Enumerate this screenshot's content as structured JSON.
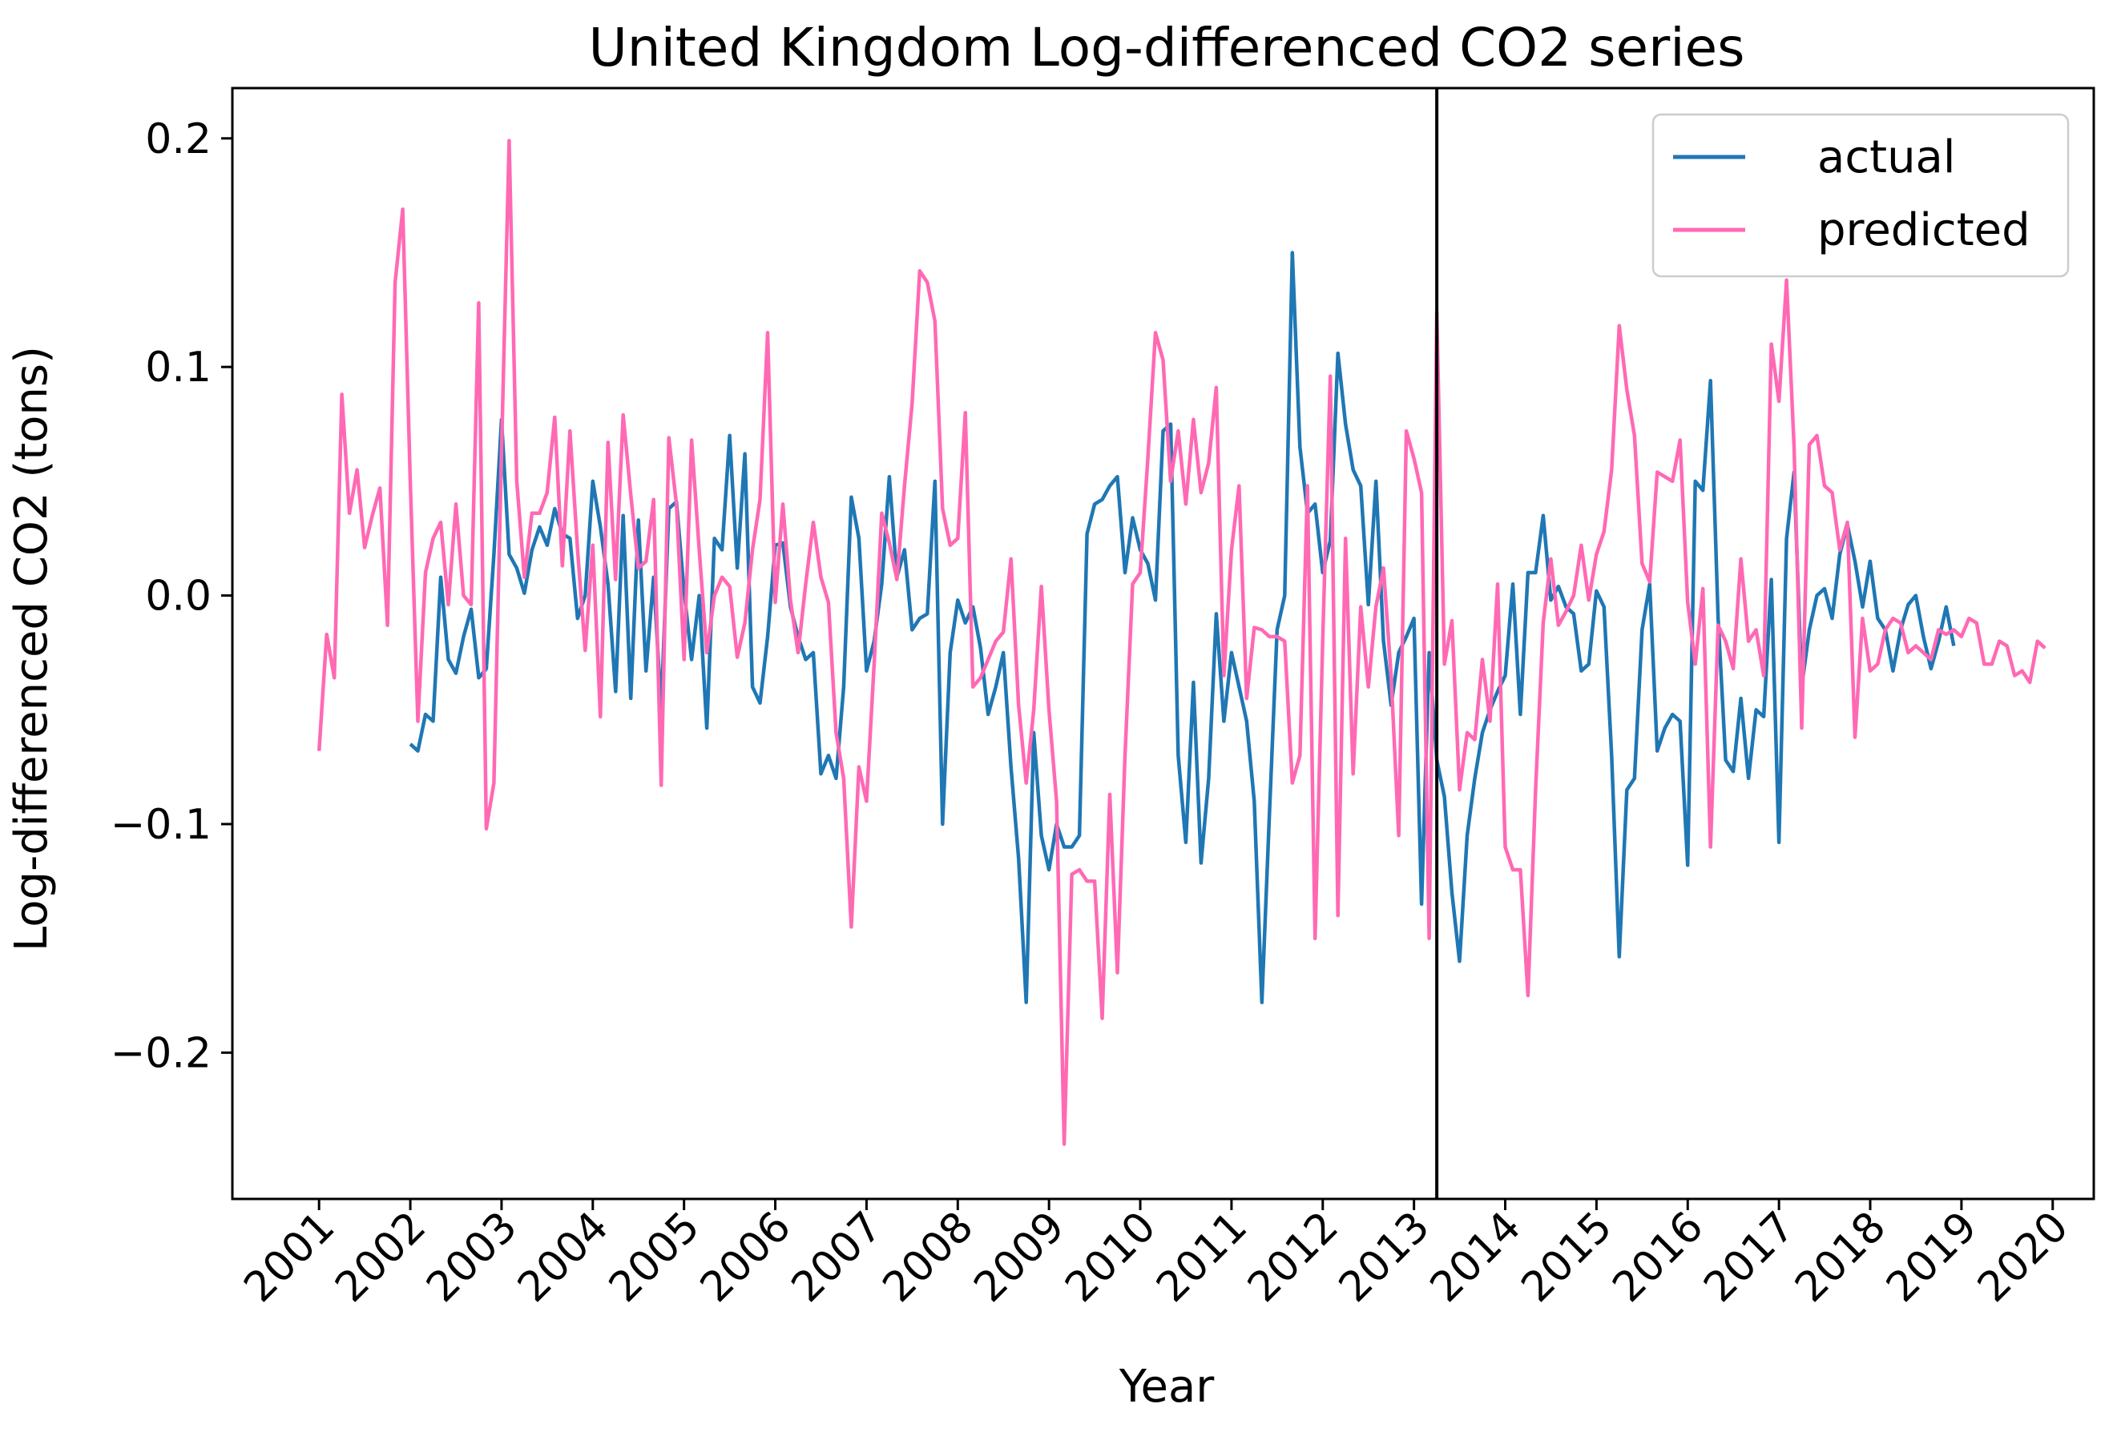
{
  "chart_data": {
    "type": "line",
    "title": "United Kingdom Log-differenced CO2 series",
    "xlabel": "Year",
    "ylabel": "Log-differenced CO2 (tons)",
    "xlim": [
      2000.05,
      2020.45
    ],
    "ylim": [
      -0.264,
      0.222
    ],
    "x_ticks": [
      2001,
      2002,
      2003,
      2004,
      2005,
      2006,
      2007,
      2008,
      2009,
      2010,
      2011,
      2012,
      2013,
      2014,
      2015,
      2016,
      2017,
      2018,
      2019,
      2020
    ],
    "x_tick_labels": [
      "2001",
      "2002",
      "2003",
      "2004",
      "2005",
      "2006",
      "2007",
      "2008",
      "2009",
      "2010",
      "2011",
      "2012",
      "2013",
      "2014",
      "2015",
      "2016",
      "2017",
      "2018",
      "2019",
      "2020"
    ],
    "y_ticks": [
      -0.2,
      -0.1,
      0.0,
      0.1,
      0.2
    ],
    "y_tick_labels": [
      "−0.2",
      "−0.1",
      "0.0",
      "0.1",
      "0.2"
    ],
    "grid": false,
    "legend": {
      "position": "top-right",
      "entries": [
        "actual",
        "predicted"
      ]
    },
    "vertical_line": {
      "x": 2013.25,
      "color": "#000000"
    },
    "series": [
      {
        "name": "actual",
        "color": "#1f77b4",
        "x_start": 2002.0,
        "x_step": 0.08333,
        "values": [
          -0.065,
          -0.068,
          -0.052,
          -0.055,
          0.008,
          -0.028,
          -0.034,
          -0.018,
          -0.006,
          -0.036,
          -0.032,
          0.018,
          0.077,
          0.018,
          0.012,
          0.001,
          0.02,
          0.03,
          0.022,
          0.038,
          0.027,
          0.025,
          -0.01,
          0.0,
          0.05,
          0.03,
          0.005,
          -0.042,
          0.035,
          -0.045,
          0.033,
          -0.033,
          0.008,
          -0.05,
          0.038,
          0.041,
          0.002,
          -0.028,
          0.0,
          -0.058,
          0.025,
          0.02,
          0.07,
          0.012,
          0.062,
          -0.04,
          -0.047,
          -0.018,
          0.022,
          0.023,
          -0.005,
          -0.018,
          -0.028,
          -0.025,
          -0.078,
          -0.07,
          -0.08,
          -0.04,
          0.043,
          0.025,
          -0.033,
          -0.02,
          0.005,
          0.052,
          0.008,
          0.02,
          -0.015,
          -0.01,
          -0.008,
          0.05,
          -0.1,
          -0.025,
          -0.002,
          -0.012,
          -0.005,
          -0.023,
          -0.052,
          -0.04,
          -0.025,
          -0.075,
          -0.115,
          -0.178,
          -0.06,
          -0.105,
          -0.12,
          -0.1,
          -0.11,
          -0.11,
          -0.105,
          0.027,
          0.04,
          0.042,
          0.048,
          0.052,
          0.01,
          0.034,
          0.02,
          0.014,
          -0.002,
          0.072,
          0.075,
          -0.07,
          -0.108,
          -0.038,
          -0.117,
          -0.08,
          -0.008,
          -0.055,
          -0.025,
          -0.04,
          -0.055,
          -0.09,
          -0.178,
          -0.095,
          -0.015,
          0.0,
          0.15,
          0.065,
          0.036,
          0.04,
          0.01,
          0.024,
          0.106,
          0.075,
          0.055,
          0.048,
          -0.004,
          0.05,
          -0.02,
          -0.048,
          -0.025,
          -0.018,
          -0.01,
          -0.135,
          -0.025,
          -0.072,
          -0.088,
          -0.13,
          -0.16,
          -0.105,
          -0.08,
          -0.06,
          -0.05,
          -0.042,
          -0.035,
          0.005,
          -0.052,
          0.01,
          0.01,
          0.035,
          -0.002,
          0.004,
          -0.005,
          -0.008,
          -0.033,
          -0.03,
          0.002,
          -0.005,
          -0.07,
          -0.158,
          -0.085,
          -0.08,
          -0.015,
          0.005,
          -0.068,
          -0.058,
          -0.052,
          -0.055,
          -0.118,
          0.05,
          0.046,
          0.094,
          -0.01,
          -0.072,
          -0.077,
          -0.045,
          -0.08,
          -0.05,
          -0.053,
          0.007,
          -0.108,
          0.025,
          0.054,
          -0.04,
          -0.015,
          0.0,
          0.003,
          -0.01,
          0.018,
          0.031,
          0.015,
          -0.005,
          0.015,
          -0.01,
          -0.015,
          -0.033,
          -0.015,
          -0.004,
          0.0,
          -0.018,
          -0.032,
          -0.02,
          -0.005,
          -0.022
        ]
      },
      {
        "name": "predicted",
        "color": "#ff69b4",
        "x_start": 2001.0,
        "x_step": 0.08333,
        "values": [
          -0.068,
          -0.017,
          -0.036,
          0.088,
          0.036,
          0.055,
          0.021,
          0.035,
          0.047,
          -0.013,
          0.137,
          0.169,
          0.05,
          -0.055,
          0.01,
          0.025,
          0.032,
          -0.004,
          0.04,
          0.0,
          -0.004,
          0.128,
          -0.102,
          -0.082,
          0.063,
          0.199,
          0.05,
          0.008,
          0.036,
          0.036,
          0.045,
          0.078,
          0.013,
          0.072,
          0.02,
          -0.024,
          0.022,
          -0.053,
          0.067,
          0.007,
          0.079,
          0.044,
          0.012,
          0.015,
          0.042,
          -0.083,
          0.069,
          0.04,
          -0.028,
          0.068,
          0.02,
          -0.025,
          0.0,
          0.008,
          0.004,
          -0.027,
          -0.012,
          0.02,
          0.042,
          0.115,
          -0.003,
          0.04,
          -0.002,
          -0.025,
          0.005,
          0.032,
          0.008,
          -0.003,
          -0.06,
          -0.08,
          -0.145,
          -0.075,
          -0.09,
          -0.03,
          0.036,
          0.023,
          0.007,
          0.048,
          0.084,
          0.142,
          0.137,
          0.12,
          0.038,
          0.022,
          0.025,
          0.08,
          -0.04,
          -0.036,
          -0.028,
          -0.02,
          -0.016,
          0.016,
          -0.048,
          -0.082,
          -0.05,
          0.004,
          -0.05,
          -0.09,
          -0.24,
          -0.122,
          -0.12,
          -0.125,
          -0.125,
          -0.185,
          -0.087,
          -0.165,
          -0.07,
          0.005,
          0.01,
          0.06,
          0.115,
          0.103,
          0.05,
          0.072,
          0.04,
          0.077,
          0.045,
          0.058,
          0.091,
          -0.035,
          0.02,
          0.048,
          -0.045,
          -0.014,
          -0.015,
          -0.018,
          -0.018,
          -0.02,
          -0.082,
          -0.07,
          0.048,
          -0.15,
          -0.02,
          0.096,
          -0.14,
          0.025,
          -0.078,
          -0.005,
          -0.04,
          -0.005,
          0.012,
          -0.035,
          -0.105,
          0.072,
          0.06,
          0.045,
          -0.15,
          0.124,
          -0.03,
          -0.011,
          -0.085,
          -0.06,
          -0.063,
          -0.028,
          -0.055,
          0.005,
          -0.11,
          -0.12,
          -0.12,
          -0.175,
          -0.085,
          -0.012,
          0.016,
          -0.013,
          -0.007,
          0.0,
          0.022,
          -0.002,
          0.018,
          0.028,
          0.055,
          0.118,
          0.09,
          0.07,
          0.014,
          0.006,
          0.054,
          0.052,
          0.05,
          0.068,
          -0.003,
          -0.03,
          0.003,
          -0.11,
          -0.013,
          -0.02,
          -0.032,
          0.016,
          -0.02,
          -0.015,
          -0.035,
          0.11,
          0.085,
          0.138,
          0.065,
          -0.058,
          0.066,
          0.07,
          0.048,
          0.045,
          0.02,
          0.032,
          -0.062,
          -0.01,
          -0.033,
          -0.03,
          -0.015,
          -0.01,
          -0.012,
          -0.025,
          -0.022,
          -0.025,
          -0.028,
          -0.015,
          -0.017,
          -0.015,
          -0.018,
          -0.01,
          -0.012,
          -0.03,
          -0.03,
          -0.02,
          -0.022,
          -0.035,
          -0.033,
          -0.038,
          -0.02,
          -0.023
        ]
      }
    ]
  }
}
